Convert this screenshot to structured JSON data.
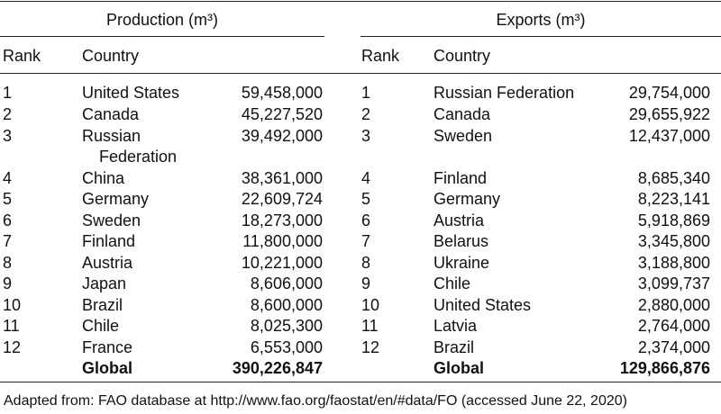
{
  "production": {
    "header": "Production (m³)",
    "col_rank": "Rank",
    "col_country": "Country",
    "rows": [
      {
        "rank": "1",
        "country": "United States",
        "value": "59,458,000"
      },
      {
        "rank": "2",
        "country": "Canada",
        "value": "45,227,520"
      },
      {
        "rank": "3",
        "country": "Russian",
        "country2": "Federation",
        "value": "39,492,000"
      },
      {
        "rank": "4",
        "country": "China",
        "value": "38,361,000"
      },
      {
        "rank": "5",
        "country": "Germany",
        "value": "22,609,724"
      },
      {
        "rank": "6",
        "country": "Sweden",
        "value": "18,273,000"
      },
      {
        "rank": "7",
        "country": "Finland",
        "value": "11,800,000"
      },
      {
        "rank": "8",
        "country": "Austria",
        "value": "10,221,000"
      },
      {
        "rank": "9",
        "country": "Japan",
        "value": "8,606,000"
      },
      {
        "rank": "10",
        "country": "Brazil",
        "value": "8,600,000"
      },
      {
        "rank": "11",
        "country": "Chile",
        "value": "8,025,300"
      },
      {
        "rank": "12",
        "country": "France",
        "value": "6,553,000"
      }
    ],
    "total_label": "Global",
    "total_value": "390,226,847"
  },
  "exports": {
    "header": "Exports (m³)",
    "col_rank": "Rank",
    "col_country": "Country",
    "rows": [
      {
        "rank": "1",
        "country": "Russian Federation",
        "value": "29,754,000"
      },
      {
        "rank": "2",
        "country": "Canada",
        "value": "29,655,922"
      },
      {
        "rank": "3",
        "country": "Sweden",
        "value": "12,437,000"
      },
      {
        "rank": "4",
        "country": "Finland",
        "value": "8,685,340"
      },
      {
        "rank": "5",
        "country": "Germany",
        "value": "8,223,141"
      },
      {
        "rank": "6",
        "country": "Austria",
        "value": "5,918,869"
      },
      {
        "rank": "7",
        "country": "Belarus",
        "value": "3,345,800"
      },
      {
        "rank": "8",
        "country": "Ukraine",
        "value": "3,188,800"
      },
      {
        "rank": "9",
        "country": "Chile",
        "value": "3,099,737"
      },
      {
        "rank": "10",
        "country": "United States",
        "value": "2,880,000"
      },
      {
        "rank": "11",
        "country": "Latvia",
        "value": "2,764,000"
      },
      {
        "rank": "12",
        "country": "Brazil",
        "value": "2,374,000"
      }
    ],
    "total_label": "Global",
    "total_value": "129,866,876"
  },
  "footnote": "Adapted from: FAO database at http://www.fao.org/faostat/en/#data/FO (accessed June 22, 2020)"
}
